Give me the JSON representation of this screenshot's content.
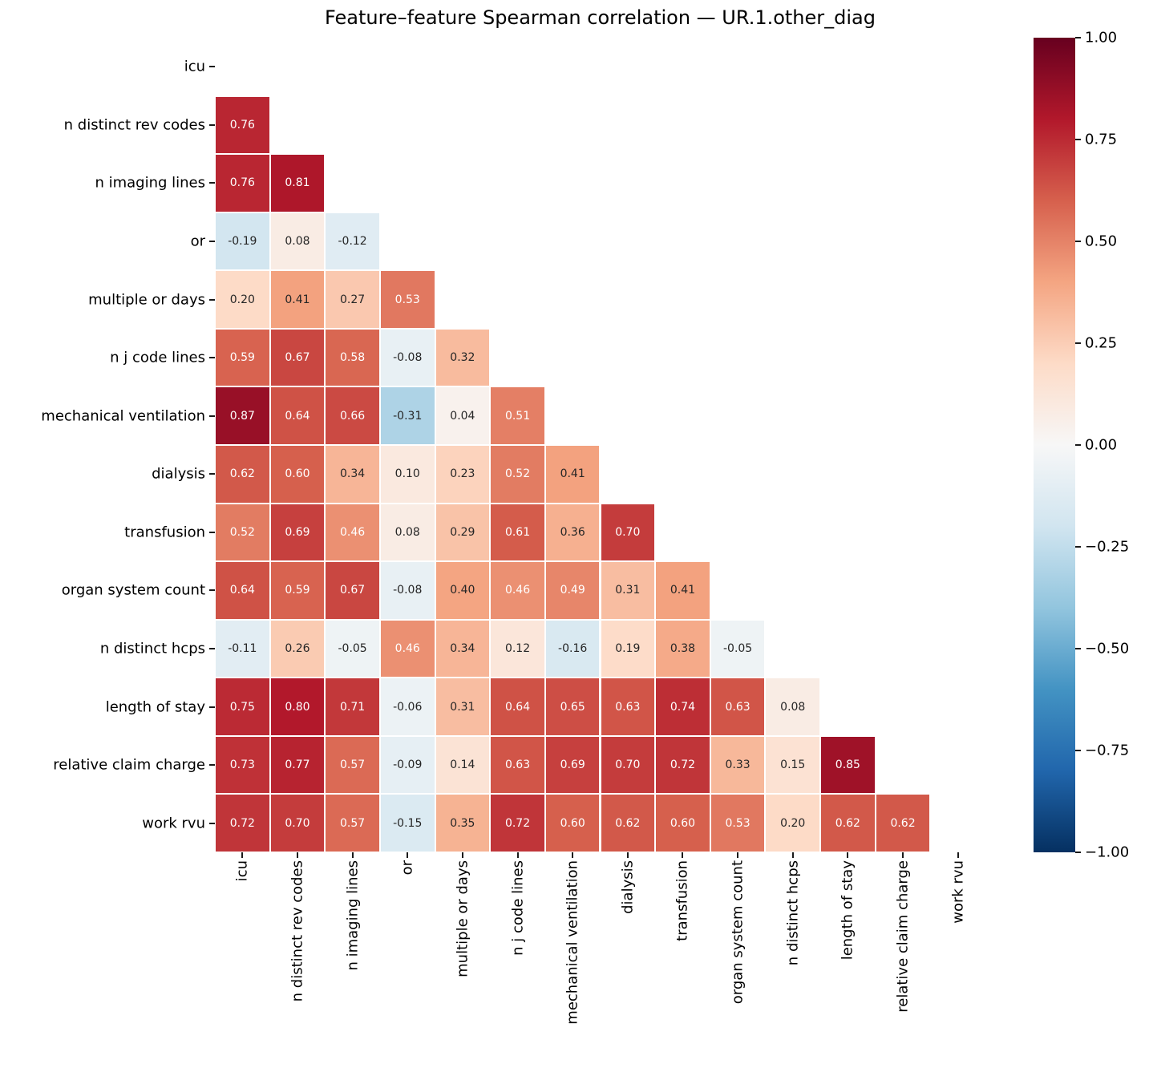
{
  "chart_data": {
    "type": "heatmap",
    "title": "Feature–feature Spearman correlation — UR.1.other_diag",
    "categories": [
      "icu",
      "n distinct rev codes",
      "n imaging lines",
      "or",
      "multiple or days",
      "n j code lines",
      "mechanical ventilation",
      "dialysis",
      "transfusion",
      "organ system count",
      "n distinct hcps",
      "length of stay",
      "relative claim charge",
      "work rvu"
    ],
    "mask": "upper-triangle-and-diagonal-hidden",
    "matrix_lower_triangle": [
      [
        0.76
      ],
      [
        0.76,
        0.81
      ],
      [
        -0.19,
        0.08,
        -0.12
      ],
      [
        0.2,
        0.41,
        0.27,
        0.53
      ],
      [
        0.59,
        0.67,
        0.58,
        -0.08,
        0.32
      ],
      [
        0.87,
        0.64,
        0.66,
        -0.31,
        0.04,
        0.51
      ],
      [
        0.62,
        0.6,
        0.34,
        0.1,
        0.23,
        0.52,
        0.41
      ],
      [
        0.52,
        0.69,
        0.46,
        0.08,
        0.29,
        0.61,
        0.36,
        0.7
      ],
      [
        0.64,
        0.59,
        0.67,
        -0.08,
        0.4,
        0.46,
        0.49,
        0.31,
        0.41
      ],
      [
        -0.11,
        0.26,
        -0.05,
        0.46,
        0.34,
        0.12,
        -0.16,
        0.19,
        0.38,
        -0.05
      ],
      [
        0.75,
        0.8,
        0.71,
        -0.06,
        0.31,
        0.64,
        0.65,
        0.63,
        0.74,
        0.63,
        0.08
      ],
      [
        0.73,
        0.77,
        0.57,
        -0.09,
        0.14,
        0.63,
        0.69,
        0.7,
        0.72,
        0.33,
        0.15,
        0.85
      ],
      [
        0.72,
        0.7,
        0.57,
        -0.15,
        0.35,
        0.72,
        0.6,
        0.62,
        0.6,
        0.53,
        0.2,
        0.62,
        0.62
      ]
    ],
    "vmin": -1.0,
    "vmax": 1.0,
    "colormap": "RdBu_r",
    "colormap_stops": [
      "#053061",
      "#2166ac",
      "#4393c3",
      "#92c5de",
      "#d1e5f0",
      "#f7f7f7",
      "#fddbc7",
      "#f4a582",
      "#d6604d",
      "#b2182b",
      "#67001f"
    ],
    "colorbar_tick_labels": [
      "1.00",
      "0.75",
      "0.50",
      "0.25",
      "0.00",
      "−0.25",
      "−0.50",
      "−0.75",
      "−1.00"
    ],
    "colorbar_tick_values": [
      1.0,
      0.75,
      0.5,
      0.25,
      0.0,
      -0.25,
      -0.5,
      -0.75,
      -1.0
    ],
    "annotation_text_colors": {
      "on_dark": "#ffffff",
      "on_light": "#262626"
    },
    "cell_border_color": "#ffffff",
    "legend_position": "right-colorbar",
    "grid": false
  }
}
